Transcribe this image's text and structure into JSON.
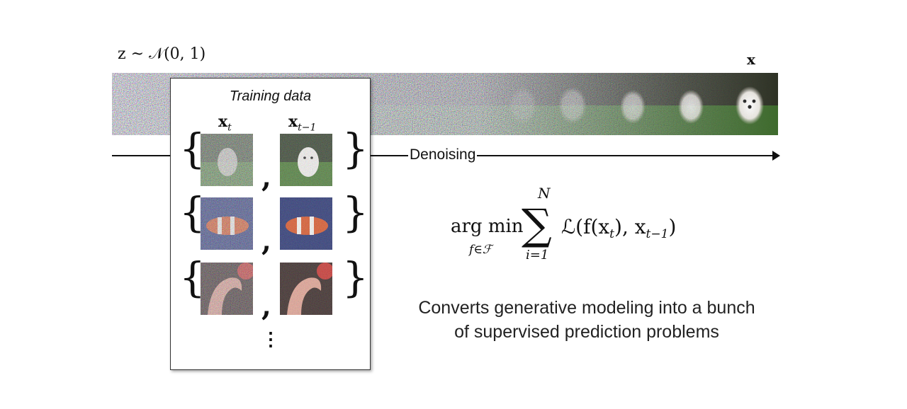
{
  "diagram": {
    "noise_label": "z ~ 𝒩(0, 1)",
    "target_label": "x",
    "timeline_label": "Denoising",
    "training_box": {
      "title": "Training data",
      "col_xt": "x",
      "col_xt_sub": "t",
      "col_xt1": "x",
      "col_xt1_sub": "t−1",
      "pairs": [
        {
          "subject": "puppy"
        },
        {
          "subject": "clownfish"
        },
        {
          "subject": "flamingo"
        }
      ],
      "ellipsis": "⋮"
    },
    "formula": {
      "argmin": "arg min",
      "argmin_sub": "f∈ℱ",
      "sum_upper": "N",
      "sum_lower": "i=1",
      "sum_symbol": "∑",
      "body": "ℒ(f(x",
      "body_sub1": "t",
      "body_mid": "), x",
      "body_sub2": "t−1",
      "body_end": ")"
    },
    "caption_line1": "Converts generative modeling into a bunch",
    "caption_line2": "of supervised prediction problems",
    "colors": {
      "fish_bg": "#2e3a78",
      "fish": "#d4582a",
      "flamingo_bg": "#3a2a26",
      "flamingo": "#d89a8a",
      "grass": "#3f6b2e"
    }
  }
}
